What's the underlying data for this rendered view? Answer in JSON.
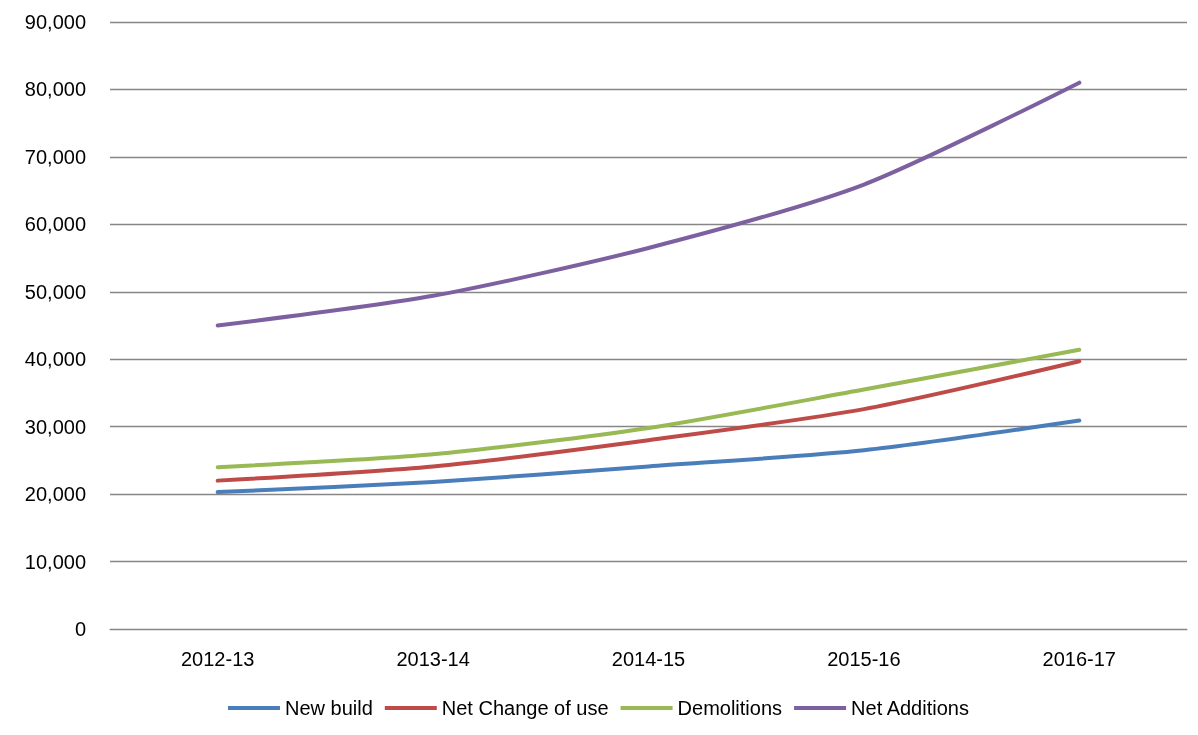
{
  "chart_data": {
    "type": "line",
    "categories": [
      "2012-13",
      "2013-14",
      "2014-15",
      "2015-16",
      "2016-17"
    ],
    "series": [
      {
        "name": "New build",
        "color": "#4a7ebb",
        "values": [
          20300,
          21800,
          24100,
          26500,
          30900
        ]
      },
      {
        "name": "Net Change of use",
        "color": "#be4b48",
        "values": [
          22000,
          24100,
          28000,
          32600,
          39700
        ]
      },
      {
        "name": "Demolitions",
        "color": "#98b954",
        "values": [
          24000,
          25900,
          29800,
          35500,
          41400
        ]
      },
      {
        "name": "Net Additions",
        "color": "#7d60a0",
        "values": [
          45000,
          49400,
          56500,
          65900,
          81000
        ]
      }
    ],
    "ylim": [
      0,
      90000
    ],
    "yticks": [
      {
        "value": 0,
        "label": "0"
      },
      {
        "value": 10000,
        "label": "10,000"
      },
      {
        "value": 20000,
        "label": "20,000"
      },
      {
        "value": 30000,
        "label": "30,000"
      },
      {
        "value": 40000,
        "label": "40,000"
      },
      {
        "value": 50000,
        "label": "50,000"
      },
      {
        "value": 60000,
        "label": "60,000"
      },
      {
        "value": 70000,
        "label": "70,000"
      },
      {
        "value": 80000,
        "label": "80,000"
      },
      {
        "value": 90000,
        "label": "90,000"
      }
    ],
    "grid": "y",
    "legend": "bottom",
    "marker": "none",
    "line_style": "solid"
  }
}
